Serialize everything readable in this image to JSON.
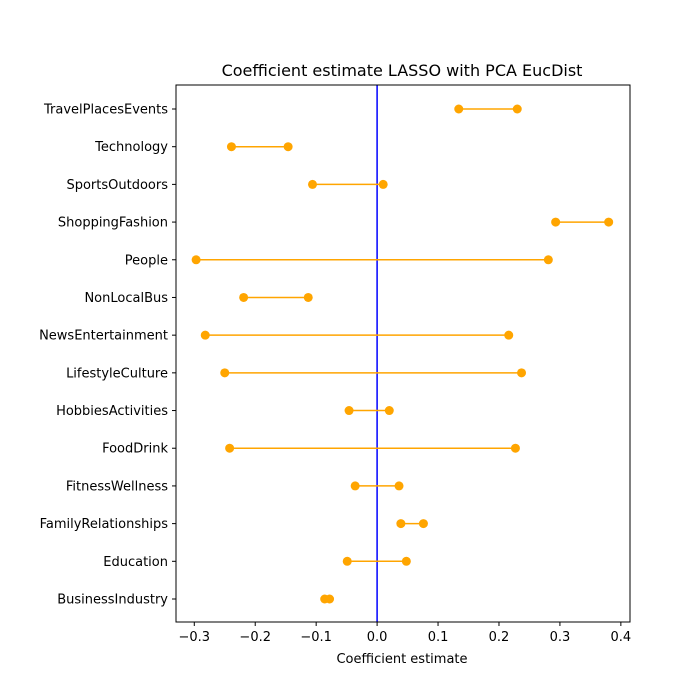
{
  "chart_data": {
    "type": "dumbbell",
    "title": "Coefficient estimate LASSO  with PCA EucDist",
    "xlabel": "Coefficient estimate",
    "ylabel": "",
    "xlim": [
      -0.33,
      0.415
    ],
    "x_ticks": [
      -0.3,
      -0.2,
      -0.1,
      0.0,
      0.1,
      0.2,
      0.3,
      0.4
    ],
    "x_tick_labels": [
      "−0.3",
      "−0.2",
      "−0.1",
      "0.0",
      "0.1",
      "0.2",
      "0.3",
      "0.4"
    ],
    "grid": false,
    "reference_line": {
      "x": 0.0,
      "color": "#0000ff"
    },
    "point_color": "#ffa500",
    "categories": [
      "BusinessIndustry",
      "Education",
      "FamilyRelationships",
      "FitnessWellness",
      "FoodDrink",
      "HobbiesActivities",
      "LifestyleCulture",
      "NewsEntertainment",
      "NonLocalBus",
      "People",
      "ShoppingFashion",
      "SportsOutdoors",
      "Technology",
      "TravelPlacesEvents"
    ],
    "intervals": [
      [
        -0.086,
        -0.078
      ],
      [
        -0.049,
        0.048
      ],
      [
        0.039,
        0.076
      ],
      [
        -0.036,
        0.036
      ],
      [
        -0.242,
        0.227
      ],
      [
        -0.046,
        0.02
      ],
      [
        -0.25,
        0.237
      ],
      [
        -0.282,
        0.216
      ],
      [
        -0.219,
        -0.113
      ],
      [
        -0.297,
        0.281
      ],
      [
        0.293,
        0.38
      ],
      [
        -0.106,
        0.01
      ],
      [
        -0.239,
        -0.146
      ],
      [
        0.134,
        0.23
      ]
    ]
  }
}
